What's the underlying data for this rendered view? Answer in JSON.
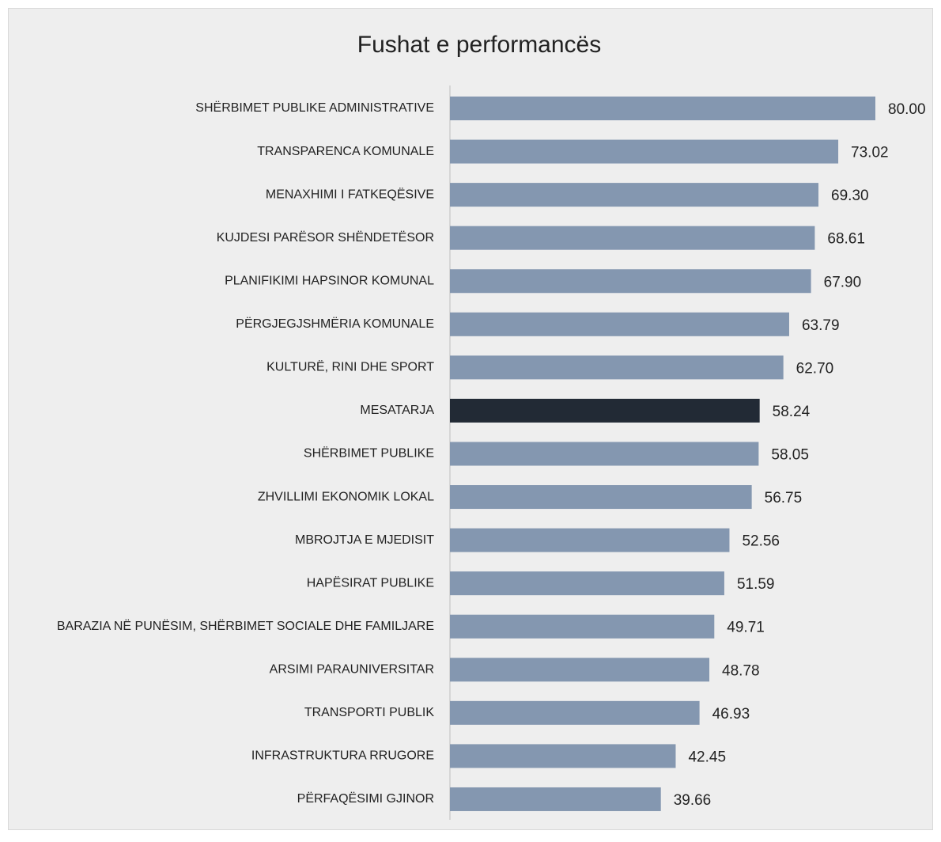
{
  "chart_data": {
    "type": "barh",
    "title": "Fushat e performancës",
    "categories": [
      "SHËRBIMET PUBLIKE ADMINISTRATIVE",
      "TRANSPARENCA KOMUNALE",
      "MENAXHIMI I FATKEQËSIVE",
      "KUJDESI PARËSOR SHËNDETËSOR",
      "PLANIFIKIMI HAPSINOR KOMUNAL",
      "PËRGJEGJSHMËRIA KOMUNALE",
      "KULTURË, RINI DHE SPORT",
      "MESATARJA",
      "SHËRBIMET PUBLIKE",
      "ZHVILLIMI EKONOMIK LOKAL",
      "MBROJTJA E MJEDISIT",
      "HAPËSIRAT PUBLIKE",
      "BARAZIA NË PUNËSIM, SHËRBIMET SOCIALE DHE FAMILJARE",
      "ARSIMI PARAUNIVERSITAR",
      "TRANSPORTI PUBLIK",
      "INFRASTRUKTURA RRUGORE",
      "PËRFAQËSIMI GJINOR"
    ],
    "values": [
      80.0,
      73.02,
      69.3,
      68.61,
      67.9,
      63.79,
      62.7,
      58.24,
      58.05,
      56.75,
      52.56,
      51.59,
      49.71,
      48.78,
      46.93,
      42.45,
      39.66
    ],
    "value_labels": [
      "80.00",
      "73.02",
      "69.30",
      "68.61",
      "67.90",
      "63.79",
      "62.70",
      "58.24",
      "58.05",
      "56.75",
      "52.56",
      "51.59",
      "49.71",
      "48.78",
      "46.93",
      "42.45",
      "39.66"
    ],
    "colors": [
      "#8497b0",
      "#8497b0",
      "#8497b0",
      "#8497b0",
      "#8497b0",
      "#8497b0",
      "#8497b0",
      "#222a35",
      "#8497b0",
      "#8497b0",
      "#8497b0",
      "#8497b0",
      "#8497b0",
      "#8497b0",
      "#8497b0",
      "#8497b0",
      "#8497b0"
    ],
    "xlim": [
      0,
      80
    ]
  }
}
